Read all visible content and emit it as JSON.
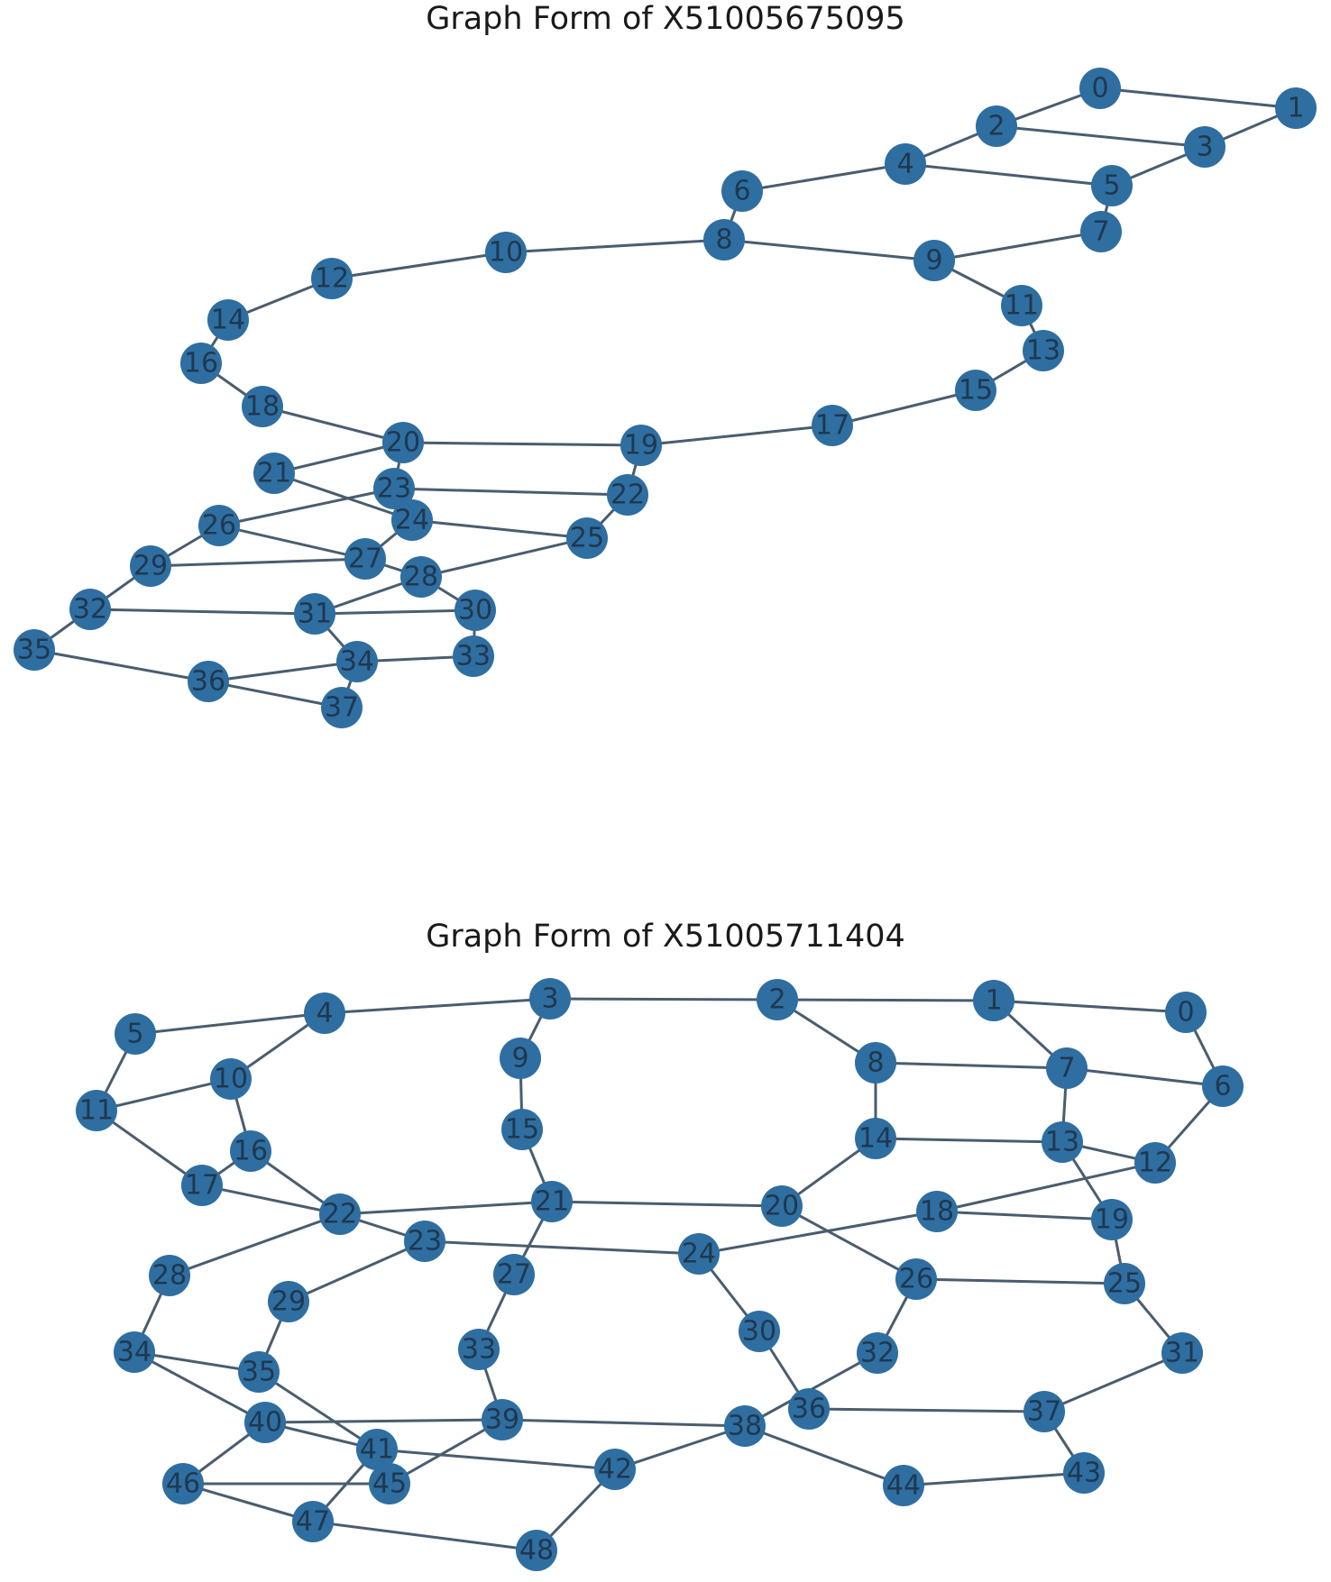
{
  "graphs": [
    {
      "title": "Graph Form of X51005675095",
      "labels": [
        "0",
        "1",
        "2",
        "3",
        "4",
        "5",
        "6",
        "7",
        "8",
        "9",
        "10",
        "11",
        "12",
        "13",
        "14",
        "15",
        "16",
        "17",
        "18",
        "19",
        "20",
        "21",
        "22",
        "23",
        "24",
        "25",
        "26",
        "27",
        "28",
        "29",
        "30",
        "31",
        "32",
        "33",
        "34",
        "35",
        "36",
        "37"
      ],
      "edges": [
        [
          0,
          1
        ],
        [
          0,
          2
        ],
        [
          1,
          3
        ],
        [
          2,
          3
        ],
        [
          2,
          4
        ],
        [
          3,
          5
        ],
        [
          4,
          5
        ],
        [
          4,
          6
        ],
        [
          5,
          7
        ],
        [
          6,
          8
        ],
        [
          7,
          9
        ],
        [
          8,
          9
        ],
        [
          8,
          10
        ],
        [
          9,
          11
        ],
        [
          10,
          12
        ],
        [
          11,
          13
        ],
        [
          12,
          14
        ],
        [
          13,
          15
        ],
        [
          14,
          16
        ],
        [
          15,
          17
        ],
        [
          16,
          18
        ],
        [
          17,
          19
        ],
        [
          18,
          20
        ],
        [
          19,
          20
        ],
        [
          19,
          22
        ],
        [
          20,
          21
        ],
        [
          20,
          23
        ],
        [
          21,
          24
        ],
        [
          22,
          23
        ],
        [
          22,
          25
        ],
        [
          23,
          26
        ],
        [
          24,
          25
        ],
        [
          24,
          27
        ],
        [
          26,
          27
        ],
        [
          26,
          29
        ],
        [
          25,
          28
        ],
        [
          27,
          28
        ],
        [
          27,
          29
        ],
        [
          28,
          30
        ],
        [
          28,
          31
        ],
        [
          29,
          32
        ],
        [
          31,
          30
        ],
        [
          31,
          32
        ],
        [
          31,
          34
        ],
        [
          32,
          35
        ],
        [
          30,
          33
        ],
        [
          33,
          34
        ],
        [
          35,
          36
        ],
        [
          34,
          36
        ],
        [
          36,
          37
        ],
        [
          34,
          37
        ]
      ]
    },
    {
      "title": "Graph Form of X51005711404",
      "labels": [
        "0",
        "1",
        "2",
        "3",
        "4",
        "5",
        "6",
        "7",
        "8",
        "9",
        "10",
        "11",
        "12",
        "13",
        "14",
        "15",
        "16",
        "17",
        "18",
        "19",
        "20",
        "21",
        "22",
        "23",
        "24",
        "25",
        "26",
        "27",
        "28",
        "29",
        "30",
        "31",
        "32",
        "33",
        "34",
        "35",
        "36",
        "37",
        "38",
        "39",
        "40",
        "41",
        "42",
        "43",
        "44",
        "45",
        "46",
        "47",
        "48"
      ],
      "edges": [
        [
          0,
          1
        ],
        [
          1,
          2
        ],
        [
          2,
          3
        ],
        [
          3,
          4
        ],
        [
          4,
          5
        ],
        [
          5,
          11
        ],
        [
          4,
          10
        ],
        [
          10,
          11
        ],
        [
          3,
          9
        ],
        [
          9,
          15
        ],
        [
          15,
          21
        ],
        [
          2,
          8
        ],
        [
          8,
          7
        ],
        [
          1,
          7
        ],
        [
          0,
          6
        ],
        [
          7,
          6
        ],
        [
          7,
          13
        ],
        [
          6,
          12
        ],
        [
          8,
          14
        ],
        [
          14,
          13
        ],
        [
          13,
          12
        ],
        [
          13,
          19
        ],
        [
          12,
          18
        ],
        [
          14,
          20
        ],
        [
          10,
          16
        ],
        [
          11,
          17
        ],
        [
          16,
          17
        ],
        [
          16,
          22
        ],
        [
          17,
          22
        ],
        [
          22,
          21
        ],
        [
          21,
          20
        ],
        [
          22,
          23
        ],
        [
          21,
          27
        ],
        [
          20,
          26
        ],
        [
          18,
          24
        ],
        [
          18,
          19
        ],
        [
          19,
          25
        ],
        [
          23,
          24
        ],
        [
          22,
          28
        ],
        [
          23,
          29
        ],
        [
          24,
          30
        ],
        [
          26,
          25
        ],
        [
          26,
          32
        ],
        [
          25,
          31
        ],
        [
          28,
          34
        ],
        [
          29,
          35
        ],
        [
          27,
          33
        ],
        [
          30,
          36
        ],
        [
          32,
          38
        ],
        [
          31,
          37
        ],
        [
          34,
          35
        ],
        [
          34,
          40
        ],
        [
          35,
          41
        ],
        [
          33,
          39
        ],
        [
          40,
          39
        ],
        [
          39,
          38
        ],
        [
          36,
          37
        ],
        [
          37,
          43
        ],
        [
          38,
          44
        ],
        [
          44,
          43
        ],
        [
          40,
          41
        ],
        [
          41,
          42
        ],
        [
          42,
          38
        ],
        [
          40,
          46
        ],
        [
          41,
          47
        ],
        [
          39,
          45
        ],
        [
          45,
          46
        ],
        [
          46,
          47
        ],
        [
          47,
          48
        ],
        [
          48,
          42
        ]
      ]
    }
  ]
}
